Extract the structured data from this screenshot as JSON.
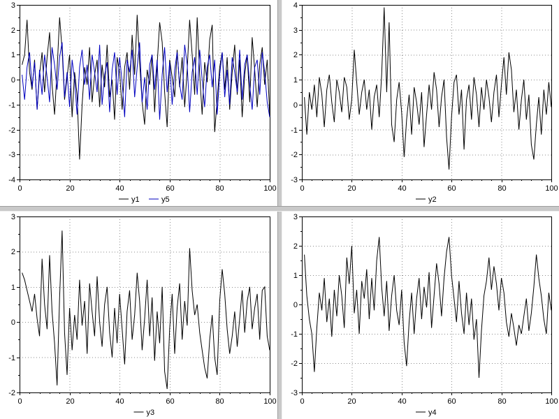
{
  "colors": {
    "axis": "#000000",
    "grid": "#000000",
    "background": "#ffffff",
    "separator": "#c9c9c9"
  },
  "chart_data": [
    {
      "type": "line",
      "xlabel": "",
      "ylabel": "",
      "xlim": [
        0,
        100
      ],
      "ylim": [
        -4,
        3
      ],
      "xtick_step": 20,
      "ytick_step": 1,
      "grid": true,
      "legend_position": "bottom",
      "series": [
        {
          "name": "y1",
          "color": "#000000",
          "values": [
            0.6,
            1.0,
            2.4,
            0.3,
            -0.4,
            0.8,
            -1.2,
            0.2,
            1.1,
            -0.5,
            0.9,
            1.9,
            -0.2,
            -1.4,
            0.4,
            2.5,
            1.2,
            -0.8,
            0.1,
            1.0,
            -1.5,
            0.3,
            -0.6,
            -3.2,
            -1.0,
            0.5,
            -0.2,
            1.3,
            -0.9,
            0.2,
            0.8,
            -1.1,
            0.6,
            -0.3,
            1.4,
            -0.7,
            0.0,
            -1.6,
            0.9,
            0.3,
            -1.2,
            0.5,
            1.1,
            -0.4,
            1.8,
            0.2,
            2.6,
            0.7,
            -0.9,
            -1.8,
            0.4,
            -0.2,
            1.0,
            -1.3,
            0.6,
            2.3,
            1.5,
            -0.5,
            -1.9,
            0.8,
            0.1,
            -0.7,
            1.2,
            -0.3,
            0.9,
            -1.1,
            0.4,
            2.4,
            1.0,
            -0.6,
            2.5,
            0.2,
            -1.4,
            0.7,
            -0.1,
            1.6,
            2.2,
            -2.1,
            -0.8,
            0.5,
            1.1,
            -0.4,
            0.9,
            -1.2,
            0.3,
            1.4,
            -0.6,
            0.8,
            -1.5,
            0.2,
            1.0,
            -0.9,
            1.7,
            0.4,
            -1.1,
            0.6,
            1.3,
            -0.2,
            0.8,
            -1.4
          ]
        },
        {
          "name": "y5",
          "color": "#0000bf",
          "values": [
            0.2,
            -0.8,
            0.5,
            1.1,
            -0.3,
            0.7,
            -1.2,
            0.4,
            -0.6,
            1.0,
            0.1,
            -0.9,
            1.3,
            0.6,
            -0.4,
            0.9,
            1.5,
            -0.7,
            0.3,
            -1.1,
            0.8,
            0.0,
            -1.4,
            0.5,
            1.2,
            -0.2,
            0.6,
            -0.8,
            1.0,
            0.3,
            -0.5,
            1.4,
            -1.0,
            0.2,
            0.7,
            -1.3,
            0.4,
            1.1,
            -0.6,
            0.9,
            -0.1,
            -1.5,
            0.8,
            0.3,
            1.2,
            -0.7,
            0.5,
            1.5,
            -0.9,
            0.1,
            -1.2,
            0.6,
            1.0,
            -0.4,
            0.8,
            -1.6,
            0.2,
            1.3,
            -0.5,
            0.7,
            -1.0,
            0.4,
            1.1,
            -0.2,
            -0.8,
            1.4,
            0.6,
            -1.3,
            0.3,
            0.9,
            -0.6,
            1.2,
            0.0,
            -1.1,
            0.5,
            1.0,
            -0.3,
            0.8,
            -1.4,
            0.2,
            1.1,
            -0.7,
            0.4,
            -1.0,
            0.9,
            0.3,
            -0.5,
            1.2,
            -0.8,
            0.6,
            1.0,
            -0.2,
            -1.2,
            0.5,
            0.8,
            -0.6,
            1.1,
            0.3,
            -0.9,
            -1.5
          ]
        }
      ]
    },
    {
      "type": "line",
      "xlabel": "",
      "ylabel": "",
      "xlim": [
        0,
        100
      ],
      "ylim": [
        -3,
        4
      ],
      "xtick_step": 20,
      "ytick_step": 1,
      "grid": true,
      "legend_position": "bottom",
      "series": [
        {
          "name": "y2",
          "color": "#000000",
          "values": [
            0.3,
            -1.2,
            0.5,
            -0.2,
            0.8,
            -0.5,
            1.1,
            0.4,
            -0.9,
            0.6,
            1.2,
            0.1,
            -0.7,
            1.0,
            0.5,
            -0.3,
            1.1,
            0.7,
            -0.6,
            0.2,
            2.2,
            0.9,
            -0.4,
            0.5,
            1.0,
            -0.2,
            0.6,
            -1.0,
            0.3,
            0.8,
            -0.5,
            1.2,
            3.9,
            0.5,
            3.3,
            -0.8,
            -1.5,
            0.2,
            0.9,
            -0.3,
            -2.1,
            -0.6,
            0.4,
            -1.2,
            0.7,
            0.1,
            -0.8,
            0.5,
            -1.7,
            -0.4,
            0.8,
            -0.2,
            1.3,
            0.6,
            -0.9,
            0.3,
            1.0,
            -1.3,
            -2.6,
            -0.5,
            0.9,
            1.2,
            -0.4,
            0.6,
            -1.8,
            0.2,
            0.8,
            -0.6,
            1.1,
            0.4,
            -0.9,
            0.7,
            -0.2,
            1.0,
            0.3,
            -0.7,
            0.5,
            1.2,
            -0.5,
            0.8,
            1.9,
            0.4,
            2.1,
            1.4,
            -0.3,
            0.6,
            -1.0,
            0.2,
            1.0,
            -0.6,
            0.4,
            -1.6,
            -2.2,
            -0.8,
            0.3,
            -1.2,
            0.6,
            -0.4,
            0.9,
            -0.1
          ]
        }
      ]
    },
    {
      "type": "line",
      "xlabel": "",
      "ylabel": "",
      "xlim": [
        0,
        100
      ],
      "ylim": [
        -2,
        3
      ],
      "xtick_step": 20,
      "ytick_step": 1,
      "grid": true,
      "legend_position": "bottom",
      "series": [
        {
          "name": "y3",
          "color": "#000000",
          "values": [
            1.4,
            1.2,
            0.9,
            0.6,
            0.3,
            0.8,
            0.1,
            -0.4,
            1.8,
            0.5,
            -0.2,
            1.9,
            0.3,
            -0.6,
            -1.8,
            0.7,
            2.6,
            -0.3,
            -1.5,
            0.4,
            -0.8,
            0.2,
            -0.5,
            1.2,
            -0.1,
            0.6,
            -0.9,
            1.1,
            0.3,
            -0.4,
            1.3,
            0.0,
            -0.7,
            0.5,
            1.0,
            -0.3,
            -1.0,
            0.4,
            -0.6,
            0.8,
            -0.2,
            -1.2,
            0.3,
            0.9,
            -0.5,
            0.2,
            1.4,
            0.6,
            -0.8,
            0.1,
            1.2,
            -0.4,
            0.7,
            -1.1,
            0.3,
            -0.6,
            1.0,
            -1.4,
            -1.9,
            -0.2,
            0.8,
            -0.9,
            0.4,
            1.1,
            -0.5,
            0.6,
            -0.1,
            2.1,
            0.9,
            0.2,
            0.5,
            -0.3,
            -0.8,
            -1.3,
            -1.6,
            -0.5,
            0.2,
            -1.0,
            -1.5,
            0.6,
            1.5,
            0.8,
            -0.2,
            -0.9,
            -0.4,
            0.3,
            -0.7,
            0.1,
            0.9,
            -0.3,
            0.6,
            1.0,
            -0.2,
            0.4,
            0.8,
            -0.5,
            0.9,
            1.0,
            -0.4,
            -0.8
          ]
        }
      ]
    },
    {
      "type": "line",
      "xlabel": "",
      "ylabel": "",
      "xlim": [
        0,
        100
      ],
      "ylim": [
        -3,
        3
      ],
      "xtick_step": 20,
      "ytick_step": 1,
      "grid": true,
      "legend_position": "bottom",
      "series": [
        {
          "name": "y4",
          "color": "#000000",
          "values": [
            1.7,
            0.3,
            -0.5,
            -1.0,
            -2.3,
            -0.8,
            0.4,
            -0.2,
            0.9,
            -0.6,
            0.2,
            -1.1,
            0.5,
            -0.4,
            1.0,
            0.3,
            -0.8,
            1.6,
            0.7,
            2.0,
            -0.3,
            0.5,
            -1.0,
            0.8,
            0.2,
            1.2,
            -0.5,
            0.9,
            -0.2,
            1.5,
            2.3,
            0.6,
            -0.4,
            0.8,
            -0.9,
            0.3,
            1.0,
            -0.2,
            -0.7,
            0.5,
            -1.3,
            -2.1,
            -0.6,
            0.4,
            -1.0,
            0.2,
            0.9,
            -0.5,
            0.6,
            -0.1,
            1.1,
            -0.8,
            0.3,
            1.4,
            0.7,
            -0.4,
            0.9,
            1.8,
            2.3,
            1.0,
            0.2,
            -0.6,
            0.8,
            -0.3,
            -1.0,
            0.4,
            -0.7,
            0.2,
            -1.2,
            -0.5,
            -2.5,
            -0.9,
            0.3,
            0.8,
            1.6,
            0.5,
            1.3,
            0.7,
            -0.2,
            0.9,
            0.4,
            -0.6,
            -1.1,
            -0.3,
            -0.8,
            -1.4,
            -0.7,
            -1.0,
            -0.4,
            0.2,
            -0.9,
            -0.3,
            0.6,
            1.7,
            0.9,
            0.3,
            -0.5,
            -1.0,
            0.4,
            -0.2
          ]
        }
      ]
    }
  ]
}
